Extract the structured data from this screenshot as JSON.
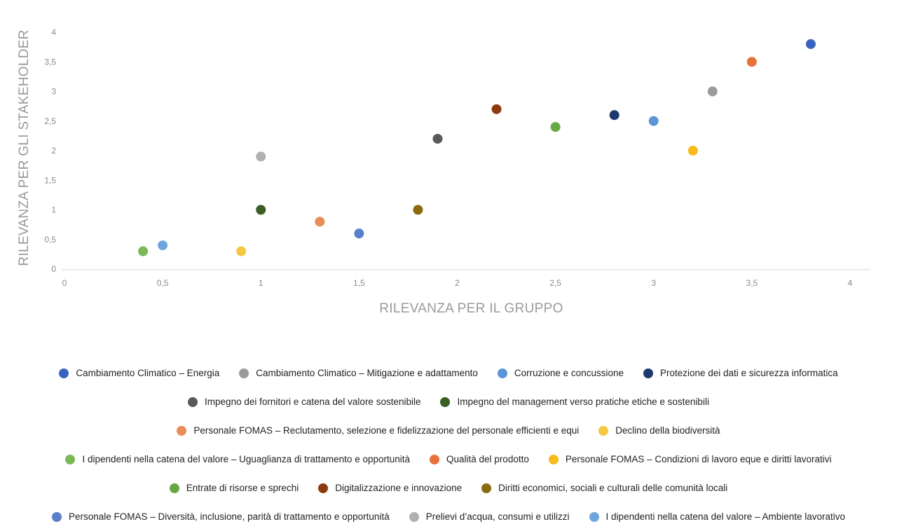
{
  "chart_data": {
    "type": "scatter",
    "xlabel": "RILEVANZA PER IL GRUPPO",
    "ylabel": "RILEVANZA PER GLI STAKEHOLDER",
    "xlim": [
      0,
      4
    ],
    "ylim": [
      0,
      4
    ],
    "x_ticks": [
      "0",
      "0,5",
      "1",
      "1,5",
      "2",
      "2,5",
      "3",
      "3,5",
      "4"
    ],
    "y_ticks": [
      "0",
      "0,5",
      "1",
      "1,5",
      "2",
      "2,5",
      "3",
      "3,5",
      "4"
    ],
    "grid": false,
    "legend_position": "bottom",
    "series": [
      {
        "name": "Cambiamento Climatico – Energia",
        "color": "#3a63c0",
        "x": 3.8,
        "y": 3.8
      },
      {
        "name": "Cambiamento Climatico –  Mitigazione e adattamento",
        "color": "#9b9b9b",
        "x": 3.3,
        "y": 3.0
      },
      {
        "name": "Corruzione e concussione",
        "color": "#5a96d6",
        "x": 3.0,
        "y": 2.5
      },
      {
        "name": "Protezione dei dati e sicurezza informatica",
        "color": "#1f3a6e",
        "x": 2.8,
        "y": 2.6
      },
      {
        "name": "Impegno dei fornitori e catena del valore sostenibile",
        "color": "#5a5a5a",
        "x": 1.9,
        "y": 2.2
      },
      {
        "name": "Impegno del management verso pratiche etiche e sostenibili",
        "color": "#3b5e25",
        "x": 1.0,
        "y": 1.0
      },
      {
        "name": "Personale FOMAS – Reclutamento, selezione e fidelizzazione del personale efficienti e equi",
        "color": "#e98c5a",
        "x": 1.3,
        "y": 0.8
      },
      {
        "name": "Declino della biodiversità",
        "color": "#f5c842",
        "x": 0.9,
        "y": 0.3
      },
      {
        "name": "I dipendenti nella catena del valore – Uguaglianza di trattamento e opportunità",
        "color": "#7cb857",
        "x": 0.4,
        "y": 0.3
      },
      {
        "name": "Qualità del prodotto",
        "color": "#e8713a",
        "x": 3.5,
        "y": 3.5
      },
      {
        "name": "Personale FOMAS – Condizioni di lavoro eque e diritti lavorativi",
        "color": "#f7bb1c",
        "x": 3.2,
        "y": 2.0
      },
      {
        "name": "Entrate di risorse e sprechi",
        "color": "#68a843",
        "x": 2.5,
        "y": 2.4
      },
      {
        "name": "Digitalizzazione e innovazione",
        "color": "#8c3a12",
        "x": 2.2,
        "y": 2.7
      },
      {
        "name": "Diritti economici, sociali e culturali delle comunità locali",
        "color": "#8a6a0c",
        "x": 1.8,
        "y": 1.0
      },
      {
        "name": "Personale FOMAS – Diversità, inclusione, parità di trattamento e opportunità",
        "color": "#5a80cc",
        "x": 1.5,
        "y": 0.6
      },
      {
        "name": "Prelievi d’acqua, consumi e utilizzi",
        "color": "#b0b0b0",
        "x": 1.0,
        "y": 1.9
      },
      {
        "name": "I dipendenti nella catena del valore – Ambiente lavorativo",
        "color": "#6fa5dc",
        "x": 0.5,
        "y": 0.4
      }
    ],
    "legend_rows": [
      [
        0,
        1,
        2,
        3
      ],
      [
        4,
        5
      ],
      [
        6,
        7
      ],
      [
        8,
        9,
        10
      ],
      [
        11,
        12,
        13
      ],
      [
        14,
        15,
        16
      ]
    ]
  }
}
